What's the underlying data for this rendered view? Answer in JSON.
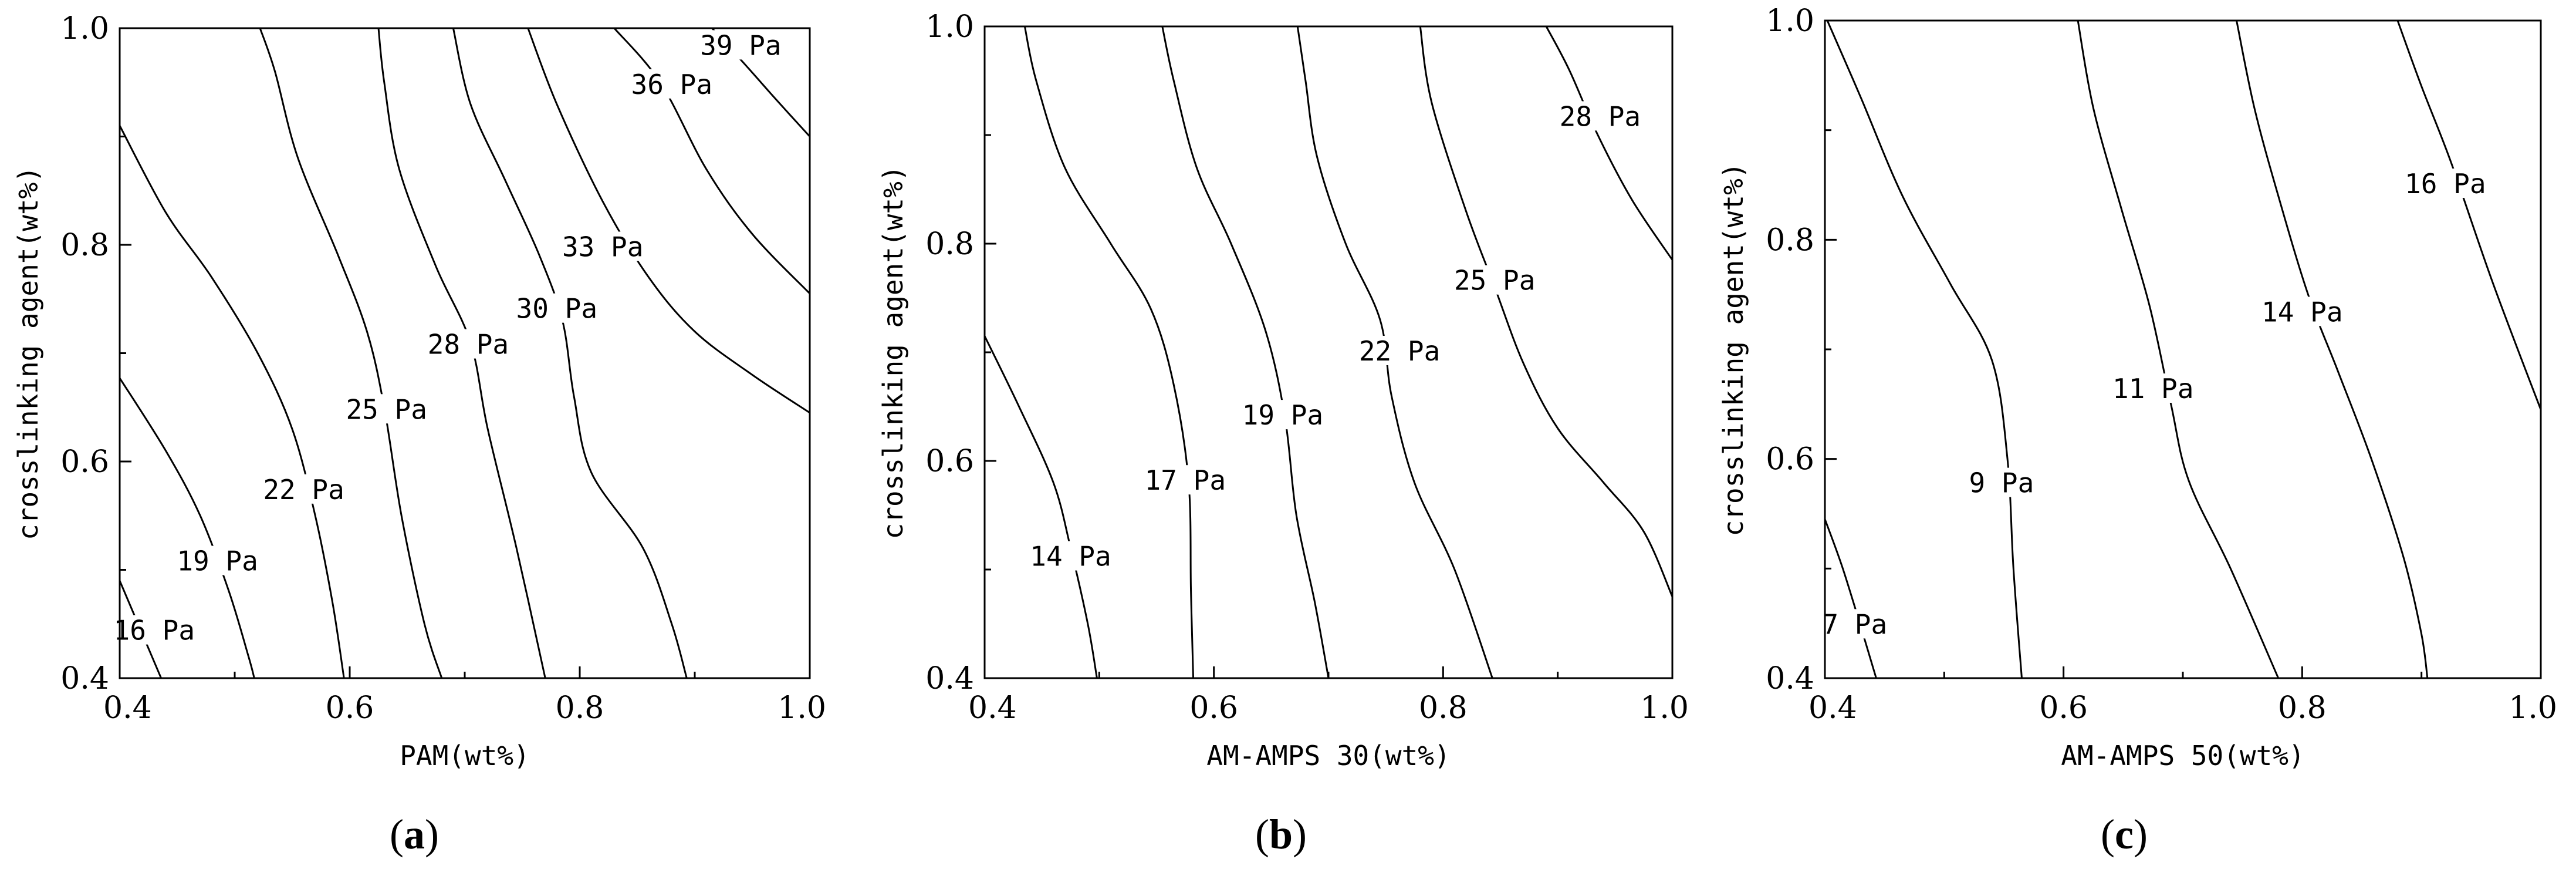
{
  "chart_data": [
    {
      "type": "contour",
      "panel_label": "a",
      "xlabel": "PAM(wt%)",
      "ylabel": "crosslinking agent(wt%)",
      "xlim": [
        0.4,
        1.0
      ],
      "ylim": [
        0.4,
        1.0
      ],
      "x_ticks": [
        "0.4",
        "0.6",
        "0.8",
        "1.0"
      ],
      "y_ticks": [
        "0.4",
        "0.6",
        "0.8",
        "1.0"
      ],
      "contours": [
        {
          "label": "16 Pa",
          "level": 16,
          "label_at": [
            0.43,
            0.443
          ],
          "points": [
            [
              0.4,
              0.49
            ],
            [
              0.42,
              0.44
            ],
            [
              0.436,
              0.4
            ]
          ]
        },
        {
          "label": "19 Pa",
          "level": 19,
          "label_at": [
            0.485,
            0.507
          ],
          "points": [
            [
              0.4,
              0.677
            ],
            [
              0.44,
              0.61
            ],
            [
              0.47,
              0.55
            ],
            [
              0.495,
              0.48
            ],
            [
              0.512,
              0.42
            ],
            [
              0.517,
              0.4
            ]
          ]
        },
        {
          "label": "22 Pa",
          "level": 22,
          "label_at": [
            0.56,
            0.573
          ],
          "points": [
            [
              0.4,
              0.91
            ],
            [
              0.44,
              0.83
            ],
            [
              0.48,
              0.77
            ],
            [
              0.52,
              0.7
            ],
            [
              0.55,
              0.63
            ],
            [
              0.57,
              0.55
            ],
            [
              0.585,
              0.47
            ],
            [
              0.595,
              0.4
            ]
          ]
        },
        {
          "label": "25 Pa",
          "level": 25,
          "label_at": [
            0.632,
            0.647
          ],
          "points": [
            [
              0.522,
              1.0
            ],
            [
              0.535,
              0.96
            ],
            [
              0.555,
              0.88
            ],
            [
              0.59,
              0.79
            ],
            [
              0.615,
              0.72
            ],
            [
              0.63,
              0.65
            ],
            [
              0.645,
              0.55
            ],
            [
              0.665,
              0.45
            ],
            [
              0.68,
              0.4
            ]
          ]
        },
        {
          "label": "28 Pa",
          "level": 28,
          "label_at": [
            0.703,
            0.707
          ],
          "points": [
            [
              0.625,
              1.0
            ],
            [
              0.63,
              0.95
            ],
            [
              0.643,
              0.87
            ],
            [
              0.675,
              0.78
            ],
            [
              0.705,
              0.71
            ],
            [
              0.72,
              0.63
            ],
            [
              0.745,
              0.52
            ],
            [
              0.77,
              0.4
            ]
          ]
        },
        {
          "label": "30 Pa",
          "level": 30,
          "label_at": [
            0.78,
            0.74
          ],
          "points": [
            [
              0.69,
              1.0
            ],
            [
              0.705,
              0.93
            ],
            [
              0.735,
              0.86
            ],
            [
              0.765,
              0.79
            ],
            [
              0.785,
              0.73
            ],
            [
              0.795,
              0.66
            ],
            [
              0.81,
              0.59
            ],
            [
              0.855,
              0.52
            ],
            [
              0.88,
              0.45
            ],
            [
              0.893,
              0.4
            ]
          ]
        },
        {
          "label": "33 Pa",
          "level": 33,
          "label_at": [
            0.82,
            0.797
          ],
          "points": [
            [
              0.755,
              1.0
            ],
            [
              0.78,
              0.93
            ],
            [
              0.82,
              0.84
            ],
            [
              0.86,
              0.77
            ],
            [
              0.9,
              0.72
            ],
            [
              0.95,
              0.68
            ],
            [
              1.0,
              0.645
            ]
          ]
        },
        {
          "label": "36 Pa",
          "level": 36,
          "label_at": [
            0.88,
            0.947
          ],
          "points": [
            [
              0.83,
              1.0
            ],
            [
              0.87,
              0.95
            ],
            [
              0.91,
              0.87
            ],
            [
              0.95,
              0.81
            ],
            [
              1.0,
              0.755
            ]
          ]
        },
        {
          "label": "39 Pa",
          "level": 39,
          "label_at": [
            0.94,
            0.983
          ],
          "points": [
            [
              0.915,
              1.0
            ],
            [
              0.945,
              0.965
            ],
            [
              0.97,
              0.935
            ],
            [
              1.0,
              0.9
            ]
          ]
        }
      ]
    },
    {
      "type": "contour",
      "panel_label": "b",
      "xlabel": "AM-AMPS 30(wt%)",
      "ylabel": "crosslinking agent(wt%)",
      "xlim": [
        0.4,
        1.0
      ],
      "ylim": [
        0.4,
        1.0
      ],
      "x_ticks": [
        "0.4",
        "0.6",
        "0.8",
        "1.0"
      ],
      "y_ticks": [
        "0.4",
        "0.6",
        "0.8",
        "1.0"
      ],
      "contours": [
        {
          "label": "14 Pa",
          "level": 14,
          "label_at": [
            0.475,
            0.511
          ],
          "points": [
            [
              0.4,
              0.715
            ],
            [
              0.43,
              0.65
            ],
            [
              0.46,
              0.58
            ],
            [
              0.475,
              0.52
            ],
            [
              0.49,
              0.45
            ],
            [
              0.498,
              0.4
            ]
          ]
        },
        {
          "label": "17 Pa",
          "level": 17,
          "label_at": [
            0.575,
            0.581
          ],
          "points": [
            [
              0.435,
              1.0
            ],
            [
              0.445,
              0.95
            ],
            [
              0.47,
              0.87
            ],
            [
              0.51,
              0.8
            ],
            [
              0.545,
              0.74
            ],
            [
              0.565,
              0.67
            ],
            [
              0.578,
              0.58
            ],
            [
              0.58,
              0.48
            ],
            [
              0.582,
              0.4
            ]
          ]
        },
        {
          "label": "19 Pa",
          "level": 19,
          "label_at": [
            0.66,
            0.641
          ],
          "points": [
            [
              0.555,
              1.0
            ],
            [
              0.565,
              0.95
            ],
            [
              0.585,
              0.87
            ],
            [
              0.615,
              0.8
            ],
            [
              0.645,
              0.72
            ],
            [
              0.662,
              0.64
            ],
            [
              0.672,
              0.55
            ],
            [
              0.688,
              0.47
            ],
            [
              0.7,
              0.4
            ]
          ]
        },
        {
          "label": "22 Pa",
          "level": 22,
          "label_at": [
            0.762,
            0.7
          ],
          "points": [
            [
              0.673,
              1.0
            ],
            [
              0.68,
              0.95
            ],
            [
              0.69,
              0.88
            ],
            [
              0.715,
              0.8
            ],
            [
              0.745,
              0.73
            ],
            [
              0.755,
              0.66
            ],
            [
              0.775,
              0.58
            ],
            [
              0.81,
              0.5
            ],
            [
              0.843,
              0.4
            ]
          ]
        },
        {
          "label": "25 Pa",
          "level": 25,
          "label_at": [
            0.845,
            0.765
          ],
          "points": [
            [
              0.78,
              1.0
            ],
            [
              0.79,
              0.93
            ],
            [
              0.82,
              0.83
            ],
            [
              0.845,
              0.76
            ],
            [
              0.87,
              0.69
            ],
            [
              0.9,
              0.63
            ],
            [
              0.94,
              0.58
            ],
            [
              0.975,
              0.535
            ],
            [
              1.0,
              0.475
            ]
          ]
        },
        {
          "label": "28 Pa",
          "level": 28,
          "label_at": [
            0.937,
            0.916
          ],
          "points": [
            [
              0.89,
              1.0
            ],
            [
              0.91,
              0.96
            ],
            [
              0.935,
              0.9
            ],
            [
              0.965,
              0.84
            ],
            [
              1.0,
              0.785
            ]
          ]
        }
      ]
    },
    {
      "type": "contour",
      "panel_label": "c",
      "xlabel": "AM-AMPS 50(wt%)",
      "ylabel": "crosslinking agent(wt%)",
      "xlim": [
        0.4,
        1.0
      ],
      "ylim": [
        0.4,
        1.0
      ],
      "x_ticks": [
        "0.4",
        "0.6",
        "0.8",
        "1.0"
      ],
      "y_ticks": [
        "0.4",
        "0.6",
        "0.8",
        "1.0"
      ],
      "contours": [
        {
          "label": "7 Pa",
          "level": 7,
          "label_at": [
            0.425,
            0.448
          ],
          "points": [
            [
              0.4,
              0.545
            ],
            [
              0.415,
              0.5
            ],
            [
              0.432,
              0.44
            ],
            [
              0.443,
              0.4
            ]
          ]
        },
        {
          "label": "9 Pa",
          "level": 9,
          "label_at": [
            0.548,
            0.577
          ],
          "points": [
            [
              0.402,
              1.0
            ],
            [
              0.43,
              0.93
            ],
            [
              0.465,
              0.84
            ],
            [
              0.505,
              0.76
            ],
            [
              0.54,
              0.69
            ],
            [
              0.553,
              0.6
            ],
            [
              0.558,
              0.5
            ],
            [
              0.565,
              0.4
            ]
          ]
        },
        {
          "label": "11 Pa",
          "level": 11,
          "label_at": [
            0.675,
            0.663
          ],
          "points": [
            [
              0.612,
              1.0
            ],
            [
              0.625,
              0.92
            ],
            [
              0.648,
              0.83
            ],
            [
              0.672,
              0.74
            ],
            [
              0.69,
              0.65
            ],
            [
              0.705,
              0.58
            ],
            [
              0.74,
              0.5
            ],
            [
              0.78,
              0.4
            ]
          ]
        },
        {
          "label": "14 Pa",
          "level": 14,
          "label_at": [
            0.8,
            0.733
          ],
          "points": [
            [
              0.745,
              1.0
            ],
            [
              0.76,
              0.92
            ],
            [
              0.78,
              0.84
            ],
            [
              0.805,
              0.75
            ],
            [
              0.83,
              0.68
            ],
            [
              0.858,
              0.6
            ],
            [
              0.885,
              0.51
            ],
            [
              0.9,
              0.44
            ],
            [
              0.905,
              0.4
            ]
          ]
        },
        {
          "label": "16 Pa",
          "level": 16,
          "label_at": [
            0.92,
            0.85
          ],
          "points": [
            [
              0.88,
              1.0
            ],
            [
              0.9,
              0.94
            ],
            [
              0.925,
              0.87
            ],
            [
              0.96,
              0.76
            ],
            [
              1.0,
              0.645
            ]
          ]
        }
      ]
    }
  ]
}
